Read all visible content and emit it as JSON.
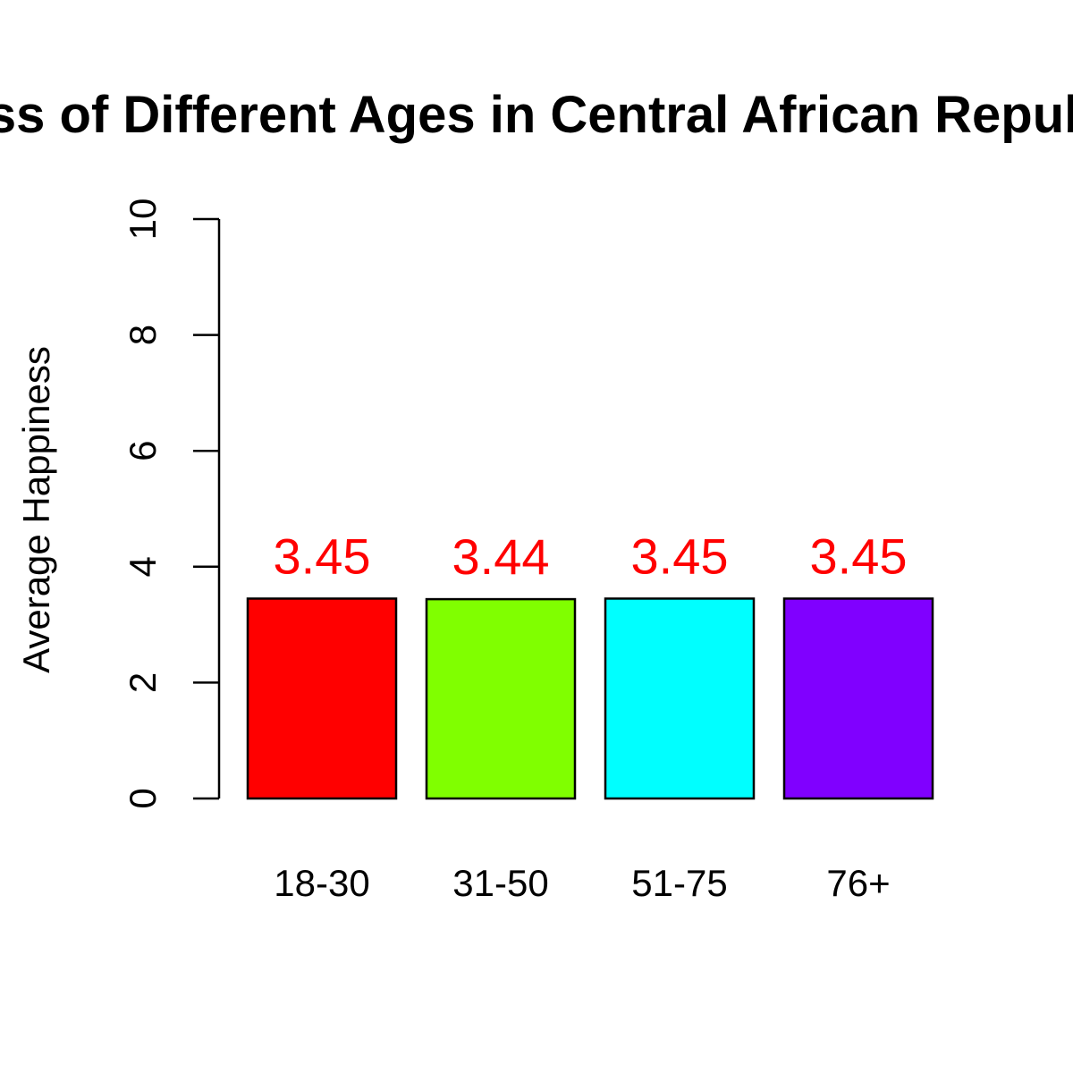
{
  "chart_data": {
    "type": "bar",
    "title": "Average Happiness of Different Ages in Central African Republic (Happiness Scale)",
    "xlabel": "",
    "ylabel": "Average Happiness",
    "categories": [
      "18-30",
      "31-50",
      "51-75",
      "76+"
    ],
    "values": [
      3.45,
      3.44,
      3.45,
      3.45
    ],
    "value_labels": [
      "3.45",
      "3.44",
      "3.45",
      "3.45"
    ],
    "bar_colors": [
      "#ff0000",
      "#80ff00",
      "#00ffff",
      "#8000ff"
    ],
    "label_color": "#ff0000",
    "ylim": [
      0,
      10
    ],
    "yticks": [
      0,
      2,
      4,
      6,
      8,
      10
    ],
    "grid": false,
    "legend": "none"
  }
}
